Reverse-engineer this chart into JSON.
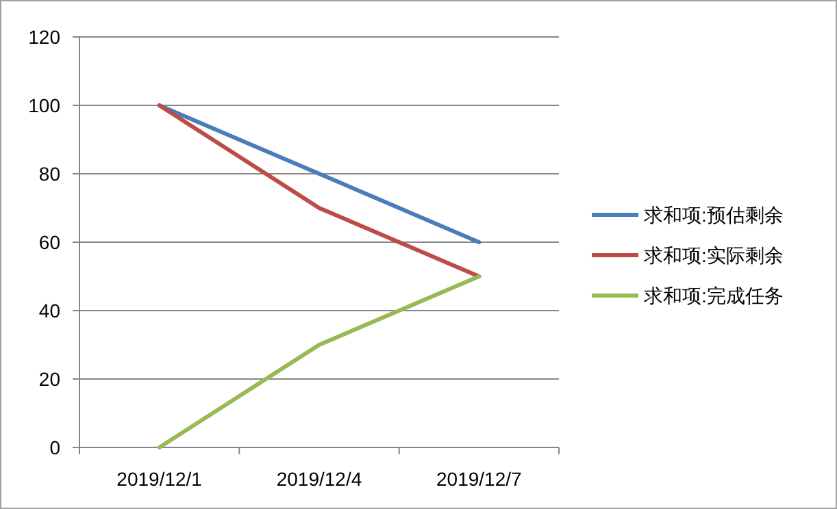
{
  "chart_data": {
    "type": "line",
    "categories": [
      "2019/12/1",
      "2019/12/4",
      "2019/12/7"
    ],
    "series": [
      {
        "name": "求和项:预估剩余",
        "color": "#4a7ebb",
        "values": [
          100,
          80,
          60
        ]
      },
      {
        "name": "求和项:实际剩余",
        "color": "#be4b48",
        "values": [
          100,
          70,
          50
        ]
      },
      {
        "name": "求和项:完成任务",
        "color": "#98b954",
        "values": [
          0,
          30,
          50
        ]
      }
    ],
    "ylim": [
      0,
      120
    ],
    "yticks": [
      0,
      20,
      40,
      60,
      80,
      100,
      120
    ],
    "grid": "y",
    "legend": "right",
    "marker": "none",
    "line_style": "solid"
  }
}
